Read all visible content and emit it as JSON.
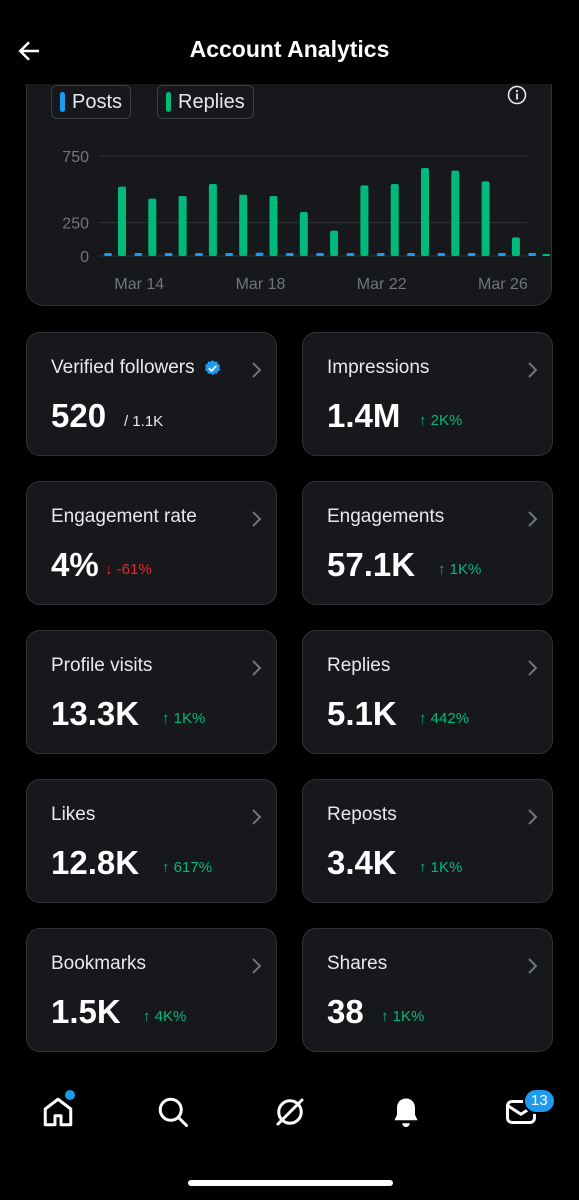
{
  "header": {
    "title": "Account Analytics"
  },
  "legend": [
    {
      "label": "Posts",
      "color": "#1d9bf0"
    },
    {
      "label": "Replies",
      "color": "#00ba7c"
    }
  ],
  "chart_data": {
    "type": "bar",
    "x_tick_labels": [
      "Mar 14",
      "Mar 18",
      "Mar 22",
      "Mar 26"
    ],
    "y_tick_labels": [
      "750",
      "250",
      "0"
    ],
    "categories": [
      "Mar 13",
      "Mar 14",
      "Mar 15",
      "Mar 16",
      "Mar 17",
      "Mar 18",
      "Mar 19",
      "Mar 20",
      "Mar 21",
      "Mar 22",
      "Mar 23",
      "Mar 24",
      "Mar 25",
      "Mar 26",
      "Mar 27"
    ],
    "series": [
      {
        "name": "Posts",
        "color": "#1d9bf0",
        "values": [
          10,
          15,
          15,
          15,
          20,
          25,
          20,
          20,
          10,
          20,
          15,
          15,
          20,
          15,
          5
        ]
      },
      {
        "name": "Replies",
        "color": "#00ba7c",
        "values": [
          520,
          430,
          450,
          540,
          460,
          450,
          330,
          190,
          530,
          540,
          660,
          640,
          560,
          140,
          0
        ]
      }
    ],
    "ylim": [
      0,
      750
    ],
    "grid": true,
    "legend": "top-left"
  },
  "metrics": [
    {
      "label": "Verified followers",
      "value": "520",
      "sub": "/ 1.1K",
      "verified": true,
      "delta": ""
    },
    {
      "label": "Impressions",
      "value": "1.4M",
      "delta": "↑ 2K%",
      "trend": "up"
    },
    {
      "label": "Engagement rate",
      "value": "4%",
      "delta": "↓ -61%",
      "trend": "down"
    },
    {
      "label": "Engagements",
      "value": "57.1K",
      "delta": "↑ 1K%",
      "trend": "up"
    },
    {
      "label": "Profile visits",
      "value": "13.3K",
      "delta": "↑ 1K%",
      "trend": "up"
    },
    {
      "label": "Replies",
      "value": "5.1K",
      "delta": "↑ 442%",
      "trend": "up"
    },
    {
      "label": "Likes",
      "value": "12.8K",
      "delta": "↑ 617%",
      "trend": "up"
    },
    {
      "label": "Reposts",
      "value": "3.4K",
      "delta": "↑ 1K%",
      "trend": "up"
    },
    {
      "label": "Bookmarks",
      "value": "1.5K",
      "delta": "↑ 4K%",
      "trend": "up"
    },
    {
      "label": "Shares",
      "value": "38",
      "delta": "↑ 1K%",
      "trend": "up"
    }
  ],
  "nav": {
    "items": [
      "home-icon",
      "search-icon",
      "grok-icon",
      "notifications-icon",
      "messages-icon"
    ],
    "messages_badge": "13"
  },
  "colors": {
    "accent": "#1d9bf0",
    "up": "#00ba7c",
    "down": "#f4212e",
    "card": "#16181c"
  }
}
